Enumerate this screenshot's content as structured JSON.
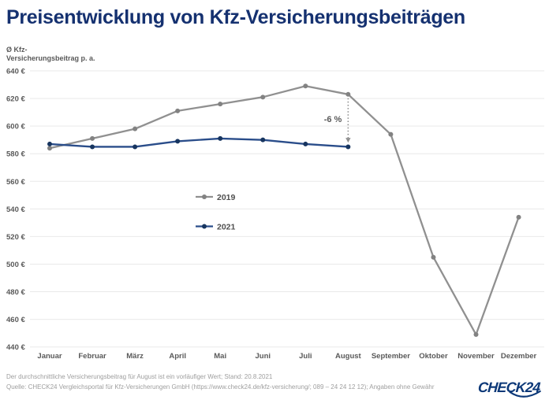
{
  "title": "Preisentwicklung von Kfz-Versicherungsbeiträgen",
  "y_axis": {
    "label_line1": "Ø Kfz-",
    "label_line2": "Versicherungsbeitrag p. a."
  },
  "chart_data": {
    "type": "line",
    "title": "Preisentwicklung von Kfz-Versicherungsbeiträgen",
    "ylabel": "Ø Kfz-Versicherungsbeitrag p. a.",
    "xlabel": "",
    "categories": [
      "Januar",
      "Februar",
      "März",
      "April",
      "Mai",
      "Juni",
      "Juli",
      "August",
      "September",
      "Oktober",
      "November",
      "Dezember"
    ],
    "series": [
      {
        "name": "2019",
        "color": "#909090",
        "marker_color": "#828282",
        "values": [
          584,
          591,
          598,
          611,
          616,
          621,
          629,
          623,
          594,
          505,
          449,
          534
        ]
      },
      {
        "name": "2021",
        "color": "#2a4d8a",
        "marker_color": "#173560",
        "values": [
          587,
          585,
          585,
          589,
          591,
          590,
          587,
          585
        ]
      }
    ],
    "yticks": [
      640,
      620,
      600,
      580,
      560,
      540,
      520,
      500,
      480,
      460,
      440
    ],
    "ytick_suffix": " €",
    "ylim": [
      440,
      640
    ],
    "grid": true,
    "legend_position": "inside-center-left",
    "annotation": {
      "text": "-6 %",
      "category": "August",
      "from_value": 623,
      "to_value": 588
    }
  },
  "footer": {
    "note1": "Der durchschnittliche Versicherungsbeitrag für August ist ein vorläufiger Wert; Stand: 20.8.2021",
    "note2": "Quelle: CHECK24 Vergleichsportal für Kfz-Versicherungen GmbH (https://www.check24.de/kfz-versicherung/; 089 – 24 24 12 12); Angaben ohne Gewähr",
    "logo_text": "CHECK24"
  },
  "colors": {
    "title": "#153170",
    "axis_text": "#595959",
    "legend_text": "#4f4f4f",
    "grid": "#e9e9e9",
    "annotation": "#595959",
    "annotation_arrow": "#8f8f8f",
    "footer_text": "#9e9e9e",
    "logo": "#0c3878"
  }
}
